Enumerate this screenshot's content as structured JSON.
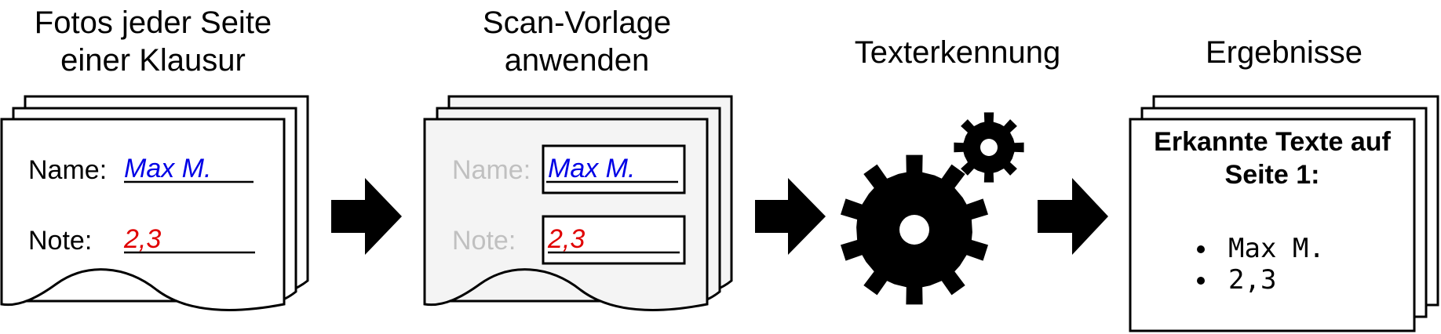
{
  "steps": [
    {
      "title_lines": [
        "Fotos jeder Seite",
        "einer Klausur"
      ]
    },
    {
      "title_lines": [
        "Scan-Vorlage",
        "anwenden"
      ]
    },
    {
      "title_lines": [
        "Texterkennung"
      ]
    },
    {
      "title_lines": [
        "Ergebnisse"
      ]
    }
  ],
  "exam_form": {
    "name_label": "Name:",
    "name_value": "Max M.",
    "grade_label": "Note:",
    "grade_value": "2,3"
  },
  "template_form": {
    "name_label": "Name:",
    "name_value": "Max  M.",
    "grade_label": "Note:",
    "grade_value": "2,3"
  },
  "results": {
    "heading_lines": [
      "Erkannte Texte auf",
      "Seite 1:"
    ],
    "items": [
      "Max M.",
      "2,3"
    ]
  },
  "colors": {
    "name_ink": "#0000e6",
    "grade_ink": "#e00000",
    "faded_label": "#c0c0c0",
    "template_fill": "#f4f4f4"
  },
  "icons": [
    "arrow-right-icon",
    "gears-icon",
    "bullet-icon"
  ]
}
